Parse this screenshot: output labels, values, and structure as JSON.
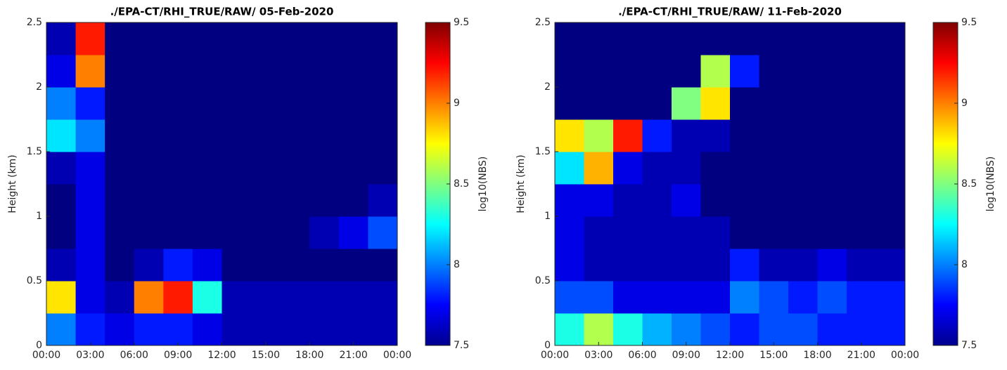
{
  "chart_data": [
    {
      "type": "heatmap",
      "title": "./EPA-CT/RHI_TRUE/RAW/ 05-Feb-2020",
      "ylabel": "Height (km)",
      "colorbar_label": "log10(NBS)",
      "colormap": "jet",
      "xlim": [
        0,
        24
      ],
      "ylim": [
        0,
        2.5
      ],
      "xticks": [
        {
          "value": 0,
          "label": "00:00"
        },
        {
          "value": 3,
          "label": "03:00"
        },
        {
          "value": 6,
          "label": "06:00"
        },
        {
          "value": 9,
          "label": "09:00"
        },
        {
          "value": 12,
          "label": "12:00"
        },
        {
          "value": 15,
          "label": "15:00"
        },
        {
          "value": 18,
          "label": "18:00"
        },
        {
          "value": 21,
          "label": "21:00"
        },
        {
          "value": 24,
          "label": "00:00"
        }
      ],
      "yticks": [
        0,
        0.5,
        1,
        1.5,
        2,
        2.5
      ],
      "clim": [
        7.5,
        9.5
      ],
      "cticks": [
        7.5,
        8,
        8.5,
        9,
        9.5
      ],
      "x_bins": [
        0,
        2,
        4,
        6,
        8,
        10,
        12,
        14,
        16,
        18,
        20,
        22,
        24
      ],
      "y_bins": [
        0,
        0.25,
        0.5,
        0.75,
        1,
        1.25,
        1.5,
        1.75,
        2,
        2.25,
        2.5
      ],
      "z": [
        [
          8.0,
          7.8,
          7.7,
          7.8,
          7.8,
          7.7,
          7.6,
          7.6,
          7.6,
          7.6,
          7.6,
          7.6
        ],
        [
          8.8,
          7.7,
          7.6,
          9.0,
          9.2,
          8.3,
          7.6,
          7.6,
          7.6,
          7.6,
          7.6,
          7.6
        ],
        [
          7.6,
          7.7,
          7.5,
          7.6,
          7.8,
          7.7,
          7.5,
          7.5,
          7.5,
          7.5,
          7.5,
          7.5
        ],
        [
          7.5,
          7.7,
          7.5,
          7.5,
          7.5,
          7.5,
          7.5,
          7.5,
          7.5,
          7.6,
          7.7,
          7.9
        ],
        [
          7.5,
          7.7,
          7.5,
          7.5,
          7.5,
          7.5,
          7.5,
          7.5,
          7.5,
          7.5,
          7.5,
          7.6
        ],
        [
          7.6,
          7.7,
          7.5,
          7.5,
          7.5,
          7.5,
          7.5,
          7.5,
          7.5,
          7.5,
          7.5,
          7.5
        ],
        [
          8.2,
          8.0,
          7.5,
          7.5,
          7.5,
          7.5,
          7.5,
          7.5,
          7.5,
          7.5,
          7.5,
          7.5
        ],
        [
          8.0,
          7.8,
          7.5,
          7.5,
          7.5,
          7.5,
          7.5,
          7.5,
          7.5,
          7.5,
          7.5,
          7.5
        ],
        [
          7.7,
          9.0,
          7.5,
          7.5,
          7.5,
          7.5,
          7.5,
          7.5,
          7.5,
          7.5,
          7.5,
          7.5
        ],
        [
          7.6,
          9.2,
          7.5,
          7.5,
          7.5,
          7.5,
          7.5,
          7.5,
          7.5,
          7.5,
          7.5,
          7.5
        ]
      ]
    },
    {
      "type": "heatmap",
      "title": "./EPA-CT/RHI_TRUE/RAW/ 11-Feb-2020",
      "ylabel": "Height (km)",
      "colorbar_label": "log10(NBS)",
      "colormap": "jet",
      "xlim": [
        0,
        24
      ],
      "ylim": [
        0,
        2.5
      ],
      "xticks": [
        {
          "value": 0,
          "label": "00:00"
        },
        {
          "value": 3,
          "label": "03:00"
        },
        {
          "value": 6,
          "label": "06:00"
        },
        {
          "value": 9,
          "label": "09:00"
        },
        {
          "value": 12,
          "label": "12:00"
        },
        {
          "value": 15,
          "label": "15:00"
        },
        {
          "value": 18,
          "label": "18:00"
        },
        {
          "value": 21,
          "label": "21:00"
        },
        {
          "value": 24,
          "label": "00:00"
        }
      ],
      "yticks": [
        0,
        0.5,
        1,
        1.5,
        2,
        2.5
      ],
      "clim": [
        7.5,
        9.5
      ],
      "cticks": [
        7.5,
        8,
        8.5,
        9,
        9.5
      ],
      "x_bins": [
        0,
        2,
        4,
        6,
        8,
        10,
        12,
        14,
        16,
        18,
        20,
        22,
        24
      ],
      "y_bins": [
        0,
        0.25,
        0.5,
        0.75,
        1,
        1.25,
        1.5,
        1.75,
        2,
        2.25,
        2.5
      ],
      "z": [
        [
          8.3,
          8.6,
          8.3,
          8.1,
          8.0,
          7.9,
          7.8,
          7.9,
          7.9,
          7.8,
          7.8,
          7.8
        ],
        [
          7.9,
          7.9,
          7.7,
          7.7,
          7.7,
          7.7,
          8.0,
          7.9,
          7.8,
          7.9,
          7.8,
          7.8
        ],
        [
          7.7,
          7.6,
          7.6,
          7.6,
          7.6,
          7.6,
          7.8,
          7.6,
          7.6,
          7.7,
          7.6,
          7.6
        ],
        [
          7.7,
          7.6,
          7.6,
          7.6,
          7.6,
          7.6,
          7.5,
          7.5,
          7.5,
          7.5,
          7.5,
          7.5
        ],
        [
          7.7,
          7.7,
          7.6,
          7.6,
          7.7,
          7.5,
          7.5,
          7.5,
          7.5,
          7.5,
          7.5,
          7.5
        ],
        [
          8.2,
          8.9,
          7.7,
          7.6,
          7.6,
          7.5,
          7.5,
          7.5,
          7.5,
          7.5,
          7.5,
          7.5
        ],
        [
          8.8,
          8.6,
          9.2,
          7.8,
          7.6,
          7.6,
          7.5,
          7.5,
          7.5,
          7.5,
          7.5,
          7.5
        ],
        [
          7.5,
          7.5,
          7.5,
          7.5,
          8.5,
          8.8,
          7.5,
          7.5,
          7.5,
          7.5,
          7.5,
          7.5
        ],
        [
          7.5,
          7.5,
          7.5,
          7.5,
          7.5,
          8.6,
          7.8,
          7.5,
          7.5,
          7.5,
          7.5,
          7.5
        ],
        [
          7.5,
          7.5,
          7.5,
          7.5,
          7.5,
          7.5,
          7.5,
          7.5,
          7.5,
          7.5,
          7.5,
          7.5
        ]
      ]
    }
  ]
}
